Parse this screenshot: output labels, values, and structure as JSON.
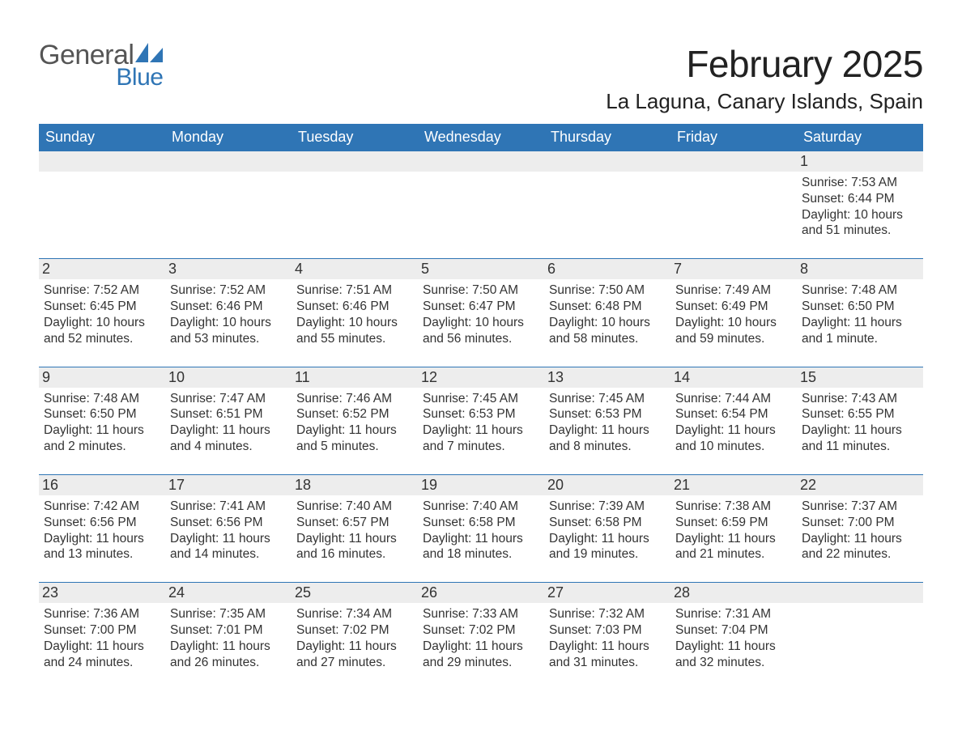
{
  "logo": {
    "word1": "General",
    "word2": "Blue"
  },
  "title": "February 2025",
  "location": "La Laguna, Canary Islands, Spain",
  "colors": {
    "brand_blue": "#2f75b5",
    "day_bg": "#ededed",
    "logo_gray": "#555555",
    "text": "#212121",
    "background": "#ffffff"
  },
  "weekdays": [
    "Sunday",
    "Monday",
    "Tuesday",
    "Wednesday",
    "Thursday",
    "Friday",
    "Saturday"
  ],
  "weeks": [
    [
      null,
      null,
      null,
      null,
      null,
      null,
      {
        "day": "1",
        "sunrise": "Sunrise: 7:53 AM",
        "sunset": "Sunset: 6:44 PM",
        "daylight1": "Daylight: 10 hours",
        "daylight2": "and 51 minutes."
      }
    ],
    [
      {
        "day": "2",
        "sunrise": "Sunrise: 7:52 AM",
        "sunset": "Sunset: 6:45 PM",
        "daylight1": "Daylight: 10 hours",
        "daylight2": "and 52 minutes."
      },
      {
        "day": "3",
        "sunrise": "Sunrise: 7:52 AM",
        "sunset": "Sunset: 6:46 PM",
        "daylight1": "Daylight: 10 hours",
        "daylight2": "and 53 minutes."
      },
      {
        "day": "4",
        "sunrise": "Sunrise: 7:51 AM",
        "sunset": "Sunset: 6:46 PM",
        "daylight1": "Daylight: 10 hours",
        "daylight2": "and 55 minutes."
      },
      {
        "day": "5",
        "sunrise": "Sunrise: 7:50 AM",
        "sunset": "Sunset: 6:47 PM",
        "daylight1": "Daylight: 10 hours",
        "daylight2": "and 56 minutes."
      },
      {
        "day": "6",
        "sunrise": "Sunrise: 7:50 AM",
        "sunset": "Sunset: 6:48 PM",
        "daylight1": "Daylight: 10 hours",
        "daylight2": "and 58 minutes."
      },
      {
        "day": "7",
        "sunrise": "Sunrise: 7:49 AM",
        "sunset": "Sunset: 6:49 PM",
        "daylight1": "Daylight: 10 hours",
        "daylight2": "and 59 minutes."
      },
      {
        "day": "8",
        "sunrise": "Sunrise: 7:48 AM",
        "sunset": "Sunset: 6:50 PM",
        "daylight1": "Daylight: 11 hours",
        "daylight2": "and 1 minute."
      }
    ],
    [
      {
        "day": "9",
        "sunrise": "Sunrise: 7:48 AM",
        "sunset": "Sunset: 6:50 PM",
        "daylight1": "Daylight: 11 hours",
        "daylight2": "and 2 minutes."
      },
      {
        "day": "10",
        "sunrise": "Sunrise: 7:47 AM",
        "sunset": "Sunset: 6:51 PM",
        "daylight1": "Daylight: 11 hours",
        "daylight2": "and 4 minutes."
      },
      {
        "day": "11",
        "sunrise": "Sunrise: 7:46 AM",
        "sunset": "Sunset: 6:52 PM",
        "daylight1": "Daylight: 11 hours",
        "daylight2": "and 5 minutes."
      },
      {
        "day": "12",
        "sunrise": "Sunrise: 7:45 AM",
        "sunset": "Sunset: 6:53 PM",
        "daylight1": "Daylight: 11 hours",
        "daylight2": "and 7 minutes."
      },
      {
        "day": "13",
        "sunrise": "Sunrise: 7:45 AM",
        "sunset": "Sunset: 6:53 PM",
        "daylight1": "Daylight: 11 hours",
        "daylight2": "and 8 minutes."
      },
      {
        "day": "14",
        "sunrise": "Sunrise: 7:44 AM",
        "sunset": "Sunset: 6:54 PM",
        "daylight1": "Daylight: 11 hours",
        "daylight2": "and 10 minutes."
      },
      {
        "day": "15",
        "sunrise": "Sunrise: 7:43 AM",
        "sunset": "Sunset: 6:55 PM",
        "daylight1": "Daylight: 11 hours",
        "daylight2": "and 11 minutes."
      }
    ],
    [
      {
        "day": "16",
        "sunrise": "Sunrise: 7:42 AM",
        "sunset": "Sunset: 6:56 PM",
        "daylight1": "Daylight: 11 hours",
        "daylight2": "and 13 minutes."
      },
      {
        "day": "17",
        "sunrise": "Sunrise: 7:41 AM",
        "sunset": "Sunset: 6:56 PM",
        "daylight1": "Daylight: 11 hours",
        "daylight2": "and 14 minutes."
      },
      {
        "day": "18",
        "sunrise": "Sunrise: 7:40 AM",
        "sunset": "Sunset: 6:57 PM",
        "daylight1": "Daylight: 11 hours",
        "daylight2": "and 16 minutes."
      },
      {
        "day": "19",
        "sunrise": "Sunrise: 7:40 AM",
        "sunset": "Sunset: 6:58 PM",
        "daylight1": "Daylight: 11 hours",
        "daylight2": "and 18 minutes."
      },
      {
        "day": "20",
        "sunrise": "Sunrise: 7:39 AM",
        "sunset": "Sunset: 6:58 PM",
        "daylight1": "Daylight: 11 hours",
        "daylight2": "and 19 minutes."
      },
      {
        "day": "21",
        "sunrise": "Sunrise: 7:38 AM",
        "sunset": "Sunset: 6:59 PM",
        "daylight1": "Daylight: 11 hours",
        "daylight2": "and 21 minutes."
      },
      {
        "day": "22",
        "sunrise": "Sunrise: 7:37 AM",
        "sunset": "Sunset: 7:00 PM",
        "daylight1": "Daylight: 11 hours",
        "daylight2": "and 22 minutes."
      }
    ],
    [
      {
        "day": "23",
        "sunrise": "Sunrise: 7:36 AM",
        "sunset": "Sunset: 7:00 PM",
        "daylight1": "Daylight: 11 hours",
        "daylight2": "and 24 minutes."
      },
      {
        "day": "24",
        "sunrise": "Sunrise: 7:35 AM",
        "sunset": "Sunset: 7:01 PM",
        "daylight1": "Daylight: 11 hours",
        "daylight2": "and 26 minutes."
      },
      {
        "day": "25",
        "sunrise": "Sunrise: 7:34 AM",
        "sunset": "Sunset: 7:02 PM",
        "daylight1": "Daylight: 11 hours",
        "daylight2": "and 27 minutes."
      },
      {
        "day": "26",
        "sunrise": "Sunrise: 7:33 AM",
        "sunset": "Sunset: 7:02 PM",
        "daylight1": "Daylight: 11 hours",
        "daylight2": "and 29 minutes."
      },
      {
        "day": "27",
        "sunrise": "Sunrise: 7:32 AM",
        "sunset": "Sunset: 7:03 PM",
        "daylight1": "Daylight: 11 hours",
        "daylight2": "and 31 minutes."
      },
      {
        "day": "28",
        "sunrise": "Sunrise: 7:31 AM",
        "sunset": "Sunset: 7:04 PM",
        "daylight1": "Daylight: 11 hours",
        "daylight2": "and 32 minutes."
      },
      null
    ]
  ]
}
